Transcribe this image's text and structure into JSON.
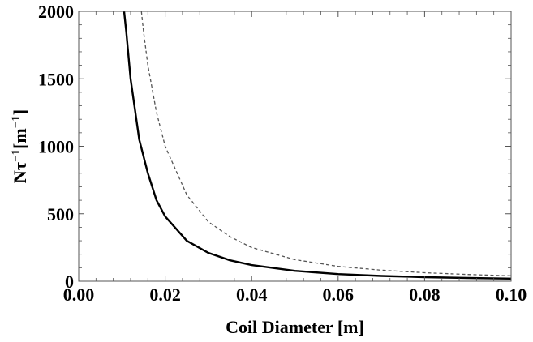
{
  "chart_data": {
    "type": "line",
    "xlabel": "Coil Diameter [m]",
    "ylabel_parts": [
      "Nτ",
      "−1",
      "[m",
      "−1",
      "]"
    ],
    "xlim": [
      0.0,
      0.1
    ],
    "ylim": [
      0,
      2000
    ],
    "x_ticks": [
      "0.00",
      "0.02",
      "0.04",
      "0.06",
      "0.08",
      "0.10"
    ],
    "y_ticks": [
      "0",
      "500",
      "1000",
      "1500",
      "2000"
    ],
    "grid": false,
    "legend": "none",
    "series": [
      {
        "style": "solid",
        "color": "#000000",
        "x": [
          0.0105,
          0.011,
          0.012,
          0.014,
          0.016,
          0.018,
          0.02,
          0.025,
          0.03,
          0.035,
          0.04,
          0.05,
          0.06,
          0.07,
          0.08,
          0.09,
          0.1
        ],
        "y": [
          2000,
          1850,
          1500,
          1050,
          800,
          600,
          480,
          300,
          210,
          155,
          120,
          77,
          53,
          39,
          30,
          24,
          19
        ]
      },
      {
        "style": "dashed",
        "color": "#555555",
        "x": [
          0.0145,
          0.015,
          0.016,
          0.018,
          0.02,
          0.025,
          0.03,
          0.035,
          0.04,
          0.05,
          0.06,
          0.07,
          0.08,
          0.09,
          0.1
        ],
        "y": [
          2000,
          1850,
          1600,
          1250,
          1000,
          640,
          440,
          330,
          250,
          160,
          110,
          82,
          63,
          50,
          40
        ]
      }
    ]
  }
}
